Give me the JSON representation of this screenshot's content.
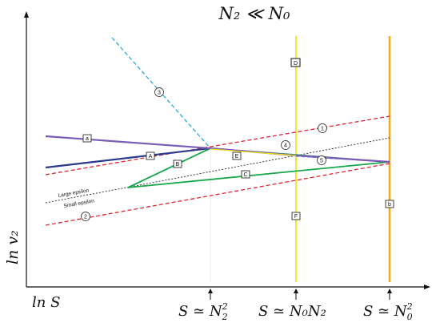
{
  "title": "N₂ ≪ N₀",
  "axes": {
    "x_label": "ln S",
    "y_label": "ln v₂"
  },
  "ticks": [
    {
      "label_main": "S ≃ N",
      "label_sub": "2",
      "label_sup": "2"
    },
    {
      "label_main": "S ≃ N₀N₂",
      "label_sub": "",
      "label_sup": ""
    },
    {
      "label_main": "S ≃ N",
      "label_sub": "0",
      "label_sup": "2"
    }
  ],
  "epsilon_labels": {
    "large": "Large epsilon",
    "small": "Small epsilon"
  },
  "box_labels": {
    "a": "a",
    "A": "A",
    "B": "B",
    "C": "C",
    "D": "D",
    "E": "E",
    "F": "F",
    "b": "b"
  },
  "circle_labels": {
    "c1": "1",
    "c2": "2",
    "c3": "3",
    "c4": "4",
    "c5": "5"
  },
  "colors": {
    "purple": "#7b5bb5",
    "navy": "#2b3a8f",
    "red_dashed": "#e0232d",
    "cyan_dashed": "#2aa9d6",
    "green": "#1aa64b",
    "yellow": "#f2e21c",
    "orange": "#f2a91c",
    "black_dotted": "#222222"
  }
}
